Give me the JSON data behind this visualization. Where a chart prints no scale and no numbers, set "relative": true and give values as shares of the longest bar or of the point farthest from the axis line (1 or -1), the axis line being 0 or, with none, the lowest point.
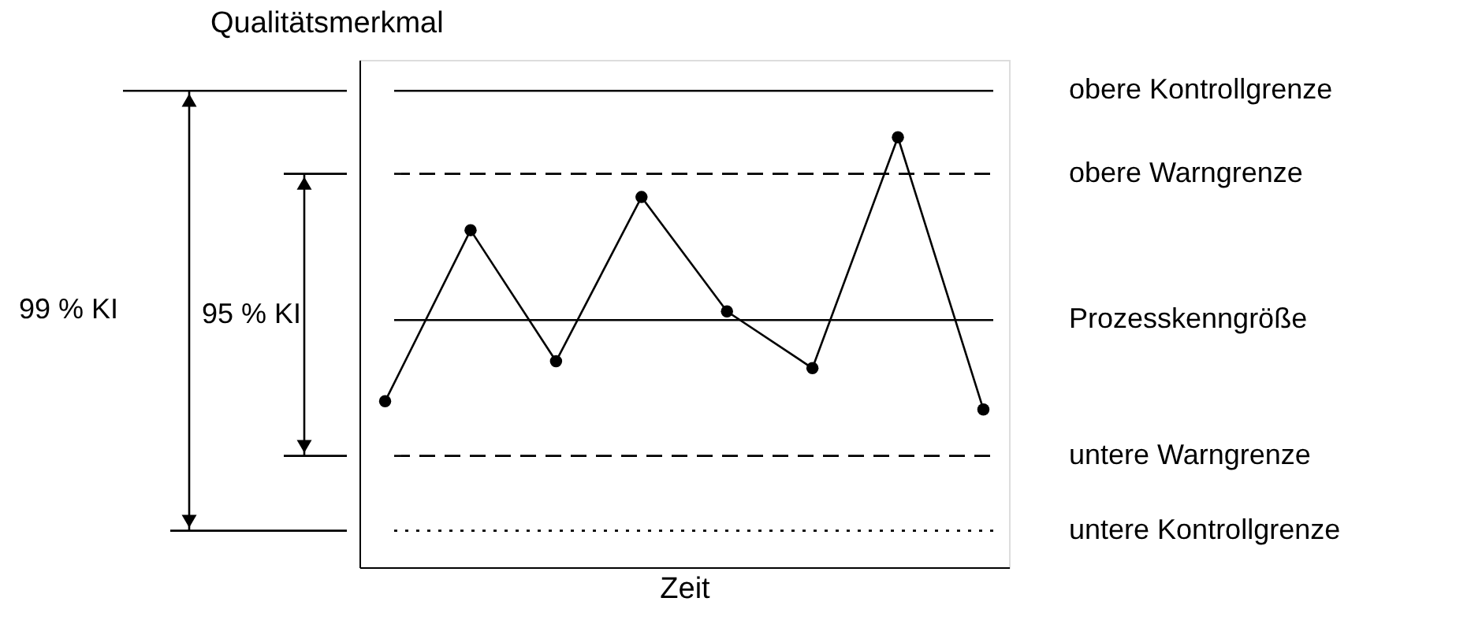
{
  "chart_data": {
    "type": "line",
    "relative": true,
    "xlabel": "Zeit",
    "ylabel": "Qualitätsmerkmal",
    "categories": [
      null,
      null,
      null,
      null,
      null,
      null,
      null,
      null
    ],
    "values": [
      0.386,
      0.784,
      0.479,
      0.861,
      0.595,
      0.463,
      1,
      0.367
    ],
    "color": "#000000",
    "marker": "circle",
    "line_style": "solid",
    "grid": false,
    "ref_lines": [
      {
        "axis": "y",
        "value": 1.108,
        "label": "obere Kontrollgrenze",
        "line_style": "solid",
        "color": "#000000"
      },
      {
        "axis": "y",
        "value": 0.915,
        "label": "obere Warngrenze",
        "line_style": "dashed",
        "color": "#000000"
      },
      {
        "axis": "y",
        "value": 0.575,
        "label": "Prozesskenngröße",
        "line_style": "solid",
        "color": "#000000"
      },
      {
        "axis": "y",
        "value": 0.259,
        "label": "untere Warngrenze",
        "line_style": "dashed",
        "color": "#000000"
      },
      {
        "axis": "y",
        "value": 0.085,
        "label": "untere Kontrollgrenze",
        "line_style": "dotted",
        "color": "#000000"
      }
    ],
    "annotations": [
      "99 % KI",
      "95 % KI"
    ]
  }
}
